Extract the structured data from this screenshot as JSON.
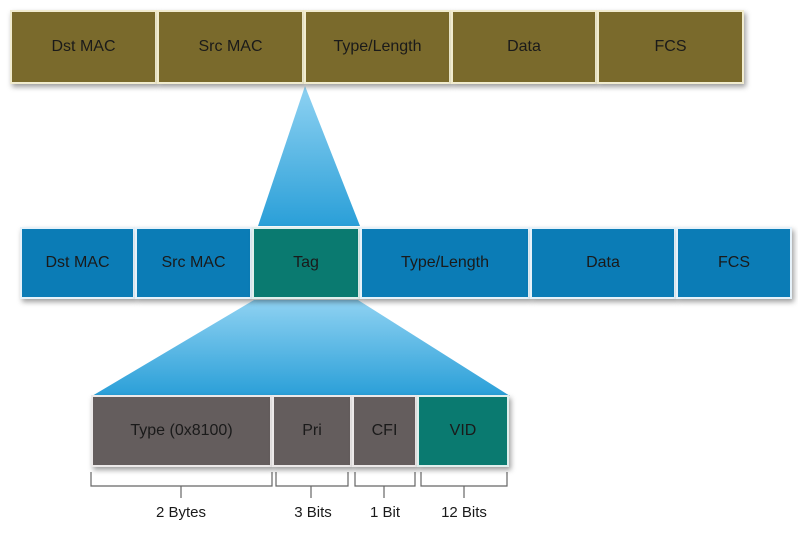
{
  "top_frame": {
    "fields": [
      "Dst MAC",
      "Src MAC",
      "Type/Length",
      "Data",
      "FCS"
    ]
  },
  "tagged_frame": {
    "fields": [
      "Dst MAC",
      "Src MAC",
      "Tag",
      "Type/Length",
      "Data",
      "FCS"
    ]
  },
  "tag_fields": {
    "fields": [
      "Type (0x8100)",
      "Pri",
      "CFI",
      "VID"
    ]
  },
  "sizes": [
    "2 Bytes",
    "3 Bits",
    "1 Bit",
    "12 Bits"
  ],
  "colors": {
    "original_frame": "#7a6a2c",
    "tagged_frame": "#0b7cb6",
    "tag": "#0a7a70",
    "tag_subfield": "#645d5d",
    "callout": "#3aa8dc"
  }
}
